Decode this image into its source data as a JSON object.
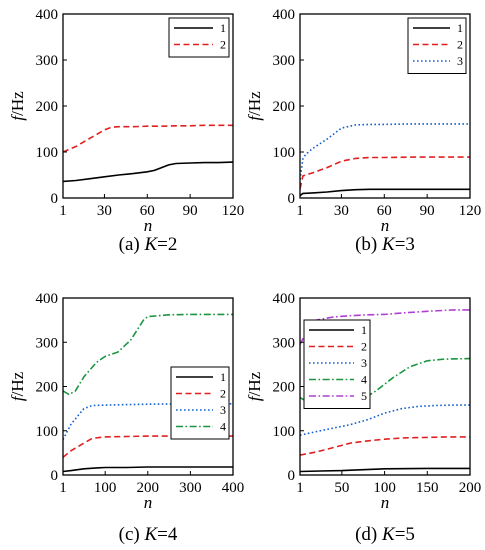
{
  "chart_data": [
    {
      "type": "line",
      "caption": "(a) K=2",
      "caption_prefix": "(a) ",
      "caption_var": "K",
      "caption_value": "=2",
      "xlabel": "n",
      "ylabel_var": "f",
      "ylabel_unit": "/Hz",
      "xlim": [
        1,
        120
      ],
      "ylim": [
        0,
        400
      ],
      "xticks": [
        1,
        30,
        60,
        90,
        120
      ],
      "yticks": [
        0,
        100,
        200,
        300,
        400
      ],
      "legend_position": "top-right",
      "series": [
        {
          "name": "1",
          "color": "#000000",
          "dash": "solid",
          "x": [
            1,
            10,
            20,
            30,
            40,
            50,
            60,
            65,
            70,
            75,
            80,
            90,
            100,
            110,
            120
          ],
          "y": [
            36,
            38,
            42,
            46,
            50,
            53,
            57,
            60,
            66,
            72,
            75,
            76,
            77,
            77,
            78
          ]
        },
        {
          "name": "2",
          "color": "#e02020",
          "dash": "dashed",
          "x": [
            1,
            10,
            20,
            30,
            35,
            40,
            50,
            60,
            70,
            80,
            90,
            100,
            110,
            120
          ],
          "y": [
            100,
            112,
            130,
            148,
            154,
            155,
            155,
            156,
            156,
            157,
            157,
            158,
            158,
            158
          ]
        }
      ]
    },
    {
      "type": "line",
      "caption": "(b) K=3",
      "caption_prefix": "(b) ",
      "caption_var": "K",
      "caption_value": "=3",
      "xlabel": "n",
      "ylabel_var": "f",
      "ylabel_unit": "/Hz",
      "xlim": [
        1,
        120
      ],
      "ylim": [
        0,
        400
      ],
      "xticks": [
        1,
        30,
        60,
        90,
        120
      ],
      "yticks": [
        0,
        100,
        200,
        300,
        400
      ],
      "legend_position": "top-right",
      "series": [
        {
          "name": "1",
          "color": "#000000",
          "dash": "solid",
          "x": [
            1,
            3,
            10,
            20,
            30,
            40,
            50,
            60,
            80,
            100,
            120
          ],
          "y": [
            5,
            10,
            11,
            13,
            16,
            18,
            19,
            19,
            19,
            19,
            19
          ]
        },
        {
          "name": "2",
          "color": "#e02020",
          "dash": "dashed",
          "x": [
            1,
            3,
            10,
            20,
            30,
            40,
            50,
            60,
            80,
            100,
            120
          ],
          "y": [
            20,
            48,
            55,
            66,
            80,
            86,
            88,
            88,
            89,
            89,
            89
          ]
        },
        {
          "name": "3",
          "color": "#1060d0",
          "dash": "dotted",
          "x": [
            1,
            3,
            5,
            10,
            20,
            30,
            40,
            50,
            60,
            80,
            100,
            120
          ],
          "y": [
            40,
            85,
            95,
            108,
            128,
            152,
            159,
            160,
            160,
            161,
            161,
            161
          ]
        }
      ]
    },
    {
      "type": "line",
      "caption": "(c) K=4",
      "caption_prefix": "(c) ",
      "caption_var": "K",
      "caption_value": "=4",
      "xlabel": "n",
      "ylabel_var": "f",
      "ylabel_unit": "/Hz",
      "xlim": [
        1,
        400
      ],
      "ylim": [
        0,
        400
      ],
      "xticks": [
        1,
        100,
        200,
        300,
        400
      ],
      "yticks": [
        0,
        100,
        200,
        300,
        400
      ],
      "legend_position": "bottom-right",
      "series": [
        {
          "name": "1",
          "color": "#000000",
          "dash": "solid",
          "x": [
            1,
            20,
            50,
            80,
            100,
            150,
            200,
            300,
            400
          ],
          "y": [
            8,
            10,
            14,
            16,
            17,
            17,
            18,
            18,
            18
          ]
        },
        {
          "name": "2",
          "color": "#e02020",
          "dash": "dashed",
          "x": [
            1,
            20,
            50,
            70,
            100,
            150,
            200,
            300,
            400
          ],
          "y": [
            40,
            55,
            72,
            83,
            86,
            87,
            88,
            88,
            88
          ]
        },
        {
          "name": "3",
          "color": "#1060d0",
          "dash": "dotted",
          "x": [
            1,
            20,
            50,
            70,
            100,
            150,
            200,
            300,
            400
          ],
          "y": [
            80,
            115,
            150,
            157,
            158,
            159,
            160,
            161,
            161
          ]
        },
        {
          "name": "4",
          "color": "#1a9641",
          "dash": "dashdot",
          "x": [
            1,
            15,
            30,
            50,
            80,
            100,
            130,
            160,
            190,
            200,
            250,
            300,
            400
          ],
          "y": [
            190,
            182,
            190,
            222,
            255,
            268,
            278,
            305,
            350,
            358,
            362,
            363,
            363
          ]
        }
      ]
    },
    {
      "type": "line",
      "caption": "(d) K=5",
      "caption_prefix": "(d) ",
      "caption_var": "K",
      "caption_value": "=5",
      "xlabel": "n",
      "ylabel_var": "f",
      "ylabel_unit": "/Hz",
      "xlim": [
        1,
        200
      ],
      "ylim": [
        0,
        400
      ],
      "xticks": [
        1,
        50,
        100,
        150,
        200
      ],
      "yticks": [
        0,
        100,
        200,
        300,
        400
      ],
      "legend_position": "top-left",
      "series": [
        {
          "name": "1",
          "color": "#000000",
          "dash": "solid",
          "x": [
            1,
            25,
            50,
            75,
            100,
            150,
            200
          ],
          "y": [
            8,
            9,
            10,
            12,
            14,
            15,
            15
          ]
        },
        {
          "name": "2",
          "color": "#e02020",
          "dash": "dashed",
          "x": [
            1,
            20,
            40,
            60,
            80,
            100,
            125,
            150,
            175,
            200
          ],
          "y": [
            45,
            52,
            62,
            72,
            77,
            81,
            84,
            85,
            86,
            86
          ]
        },
        {
          "name": "3",
          "color": "#1060d0",
          "dash": "dotted",
          "x": [
            1,
            20,
            40,
            60,
            80,
            100,
            120,
            140,
            160,
            180,
            200
          ],
          "y": [
            90,
            98,
            106,
            114,
            125,
            140,
            150,
            155,
            157,
            158,
            158
          ]
        },
        {
          "name": "4",
          "color": "#1a9641",
          "dash": "dashdot",
          "x": [
            1,
            10,
            25,
            50,
            75,
            90,
            110,
            130,
            150,
            170,
            200
          ],
          "y": [
            175,
            165,
            165,
            168,
            172,
            190,
            220,
            245,
            258,
            262,
            263
          ]
        },
        {
          "name": "5",
          "color": "#b040d0",
          "dash": "dashdot",
          "x": [
            1,
            5,
            10,
            20,
            40,
            60,
            80,
            100,
            120,
            150,
            180,
            200
          ],
          "y": [
            295,
            310,
            335,
            350,
            357,
            360,
            362,
            363,
            366,
            370,
            373,
            373
          ]
        }
      ]
    }
  ]
}
